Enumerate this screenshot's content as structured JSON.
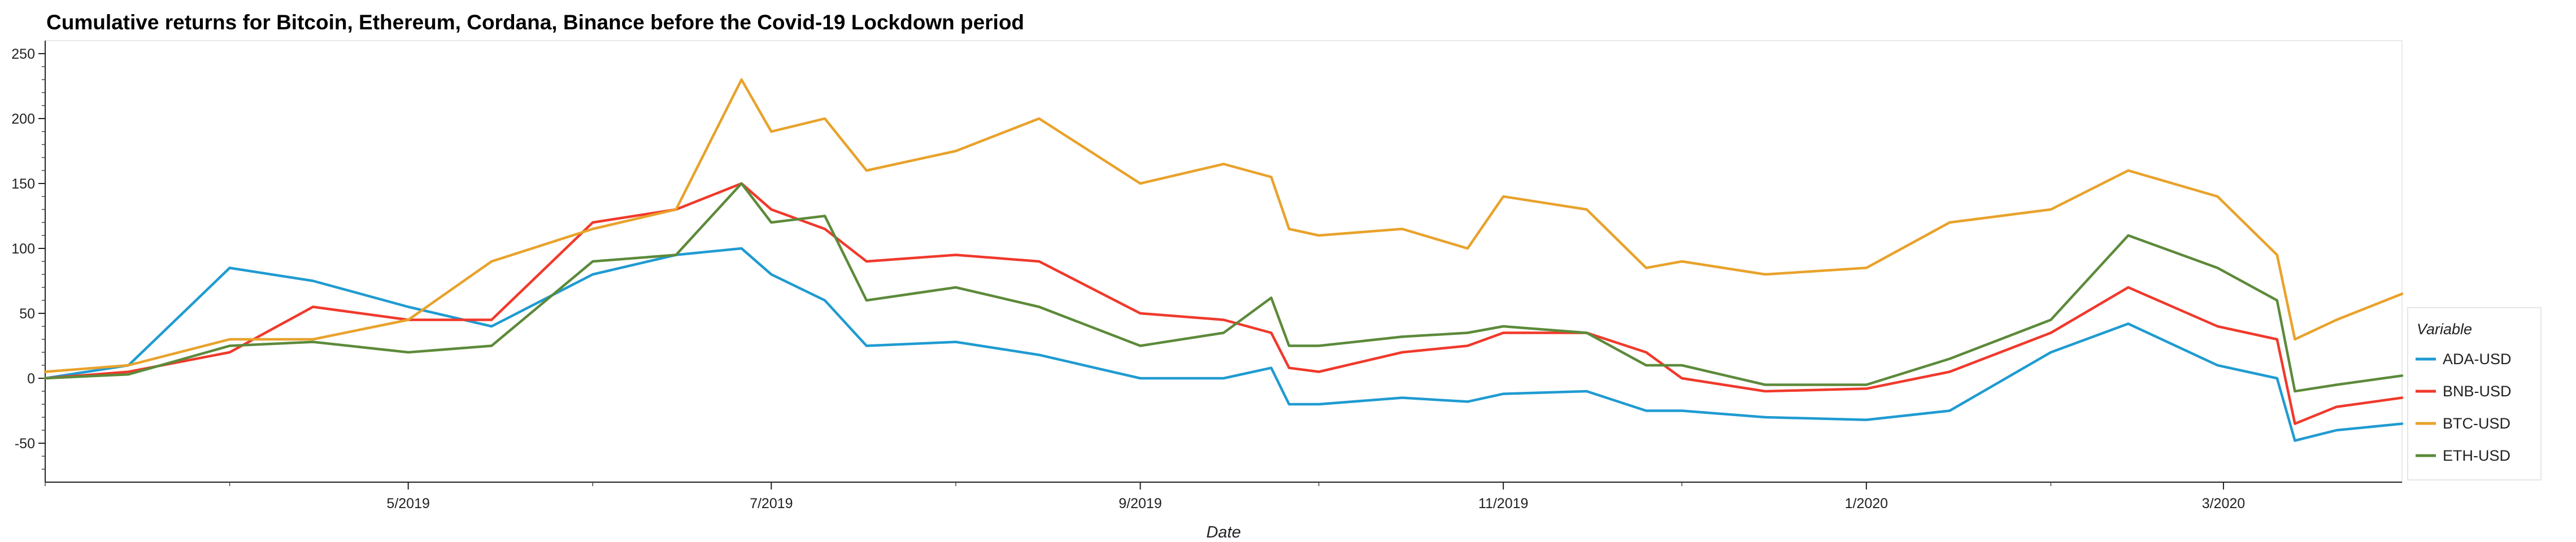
{
  "chart_data": {
    "type": "line",
    "title": "Cumulative returns for Bitcoin, Ethereum, Cordana, Binance before the Covid-19 Lockdown period",
    "xlabel": "Date",
    "ylabel": "",
    "xlim": [
      "2019-03-01",
      "2020-03-31"
    ],
    "ylim": [
      -80,
      260
    ],
    "x_ticks": [
      {
        "date": "2019-05-01",
        "label": "5/2019"
      },
      {
        "date": "2019-07-01",
        "label": "7/2019"
      },
      {
        "date": "2019-09-01",
        "label": "9/2019"
      },
      {
        "date": "2019-11-01",
        "label": "11/2019"
      },
      {
        "date": "2020-01-01",
        "label": "1/2020"
      },
      {
        "date": "2020-03-01",
        "label": "3/2020"
      }
    ],
    "y_ticks": [
      250,
      200,
      150,
      100,
      50,
      0,
      -50
    ],
    "grid": false,
    "legend": {
      "title": "Variable",
      "position": "right"
    },
    "x": [
      "2019-03-01",
      "2019-03-15",
      "2019-04-01",
      "2019-04-15",
      "2019-05-01",
      "2019-05-15",
      "2019-06-01",
      "2019-06-15",
      "2019-06-26",
      "2019-07-01",
      "2019-07-10",
      "2019-07-17",
      "2019-08-01",
      "2019-08-15",
      "2019-09-01",
      "2019-09-15",
      "2019-09-23",
      "2019-09-26",
      "2019-10-01",
      "2019-10-15",
      "2019-10-26",
      "2019-11-01",
      "2019-11-15",
      "2019-11-25",
      "2019-12-01",
      "2019-12-15",
      "2020-01-01",
      "2020-01-15",
      "2020-02-01",
      "2020-02-14",
      "2020-02-29",
      "2020-03-10",
      "2020-03-13",
      "2020-03-20",
      "2020-03-31"
    ],
    "series": [
      {
        "name": "ADA-USD",
        "color": "#1f9bd1",
        "values": [
          0,
          10,
          85,
          75,
          55,
          40,
          80,
          95,
          100,
          80,
          60,
          25,
          28,
          18,
          0,
          0,
          8,
          -20,
          -20,
          -15,
          -18,
          -12,
          -10,
          -25,
          -25,
          -30,
          -32,
          -25,
          20,
          42,
          10,
          0,
          -48,
          -40,
          -35
        ]
      },
      {
        "name": "BNB-USD",
        "color": "#f0392b",
        "values": [
          0,
          5,
          20,
          55,
          45,
          45,
          120,
          130,
          150,
          130,
          115,
          90,
          95,
          90,
          50,
          45,
          35,
          8,
          5,
          20,
          25,
          35,
          35,
          20,
          0,
          -10,
          -8,
          5,
          35,
          70,
          40,
          30,
          -35,
          -22,
          -15
        ]
      },
      {
        "name": "BTC-USD",
        "color": "#e8a22b",
        "values": [
          5,
          10,
          30,
          30,
          45,
          90,
          115,
          130,
          230,
          190,
          200,
          160,
          175,
          200,
          150,
          165,
          155,
          115,
          110,
          115,
          100,
          140,
          130,
          85,
          90,
          80,
          85,
          120,
          130,
          160,
          140,
          95,
          30,
          45,
          65
        ]
      },
      {
        "name": "ETH-USD",
        "color": "#5c8a3a",
        "values": [
          0,
          3,
          25,
          28,
          20,
          25,
          90,
          95,
          150,
          120,
          125,
          60,
          70,
          55,
          25,
          35,
          62,
          25,
          25,
          32,
          35,
          40,
          35,
          10,
          10,
          -5,
          -5,
          15,
          45,
          110,
          85,
          60,
          -10,
          -5,
          2
        ]
      }
    ]
  }
}
